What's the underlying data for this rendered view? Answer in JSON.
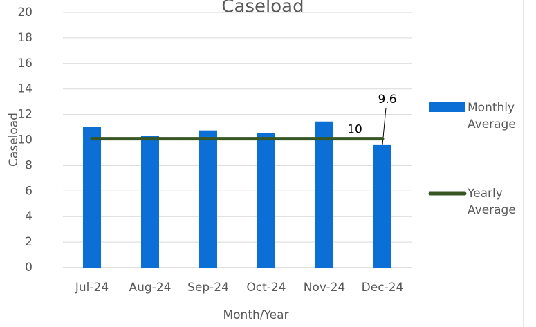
{
  "chart_data": {
    "type": "bar",
    "title": "Caseload",
    "xlabel": "Month/Year",
    "ylabel": "Caseload",
    "categories": [
      "Jul-24",
      "Aug-24",
      "Sep-24",
      "Oct-24",
      "Nov-24",
      "Dec-24"
    ],
    "series": [
      {
        "name": "Monthly Average",
        "type": "bar",
        "color": "#0b6fd6",
        "values": [
          11.05,
          10.3,
          10.75,
          10.55,
          11.45,
          9.6
        ],
        "value_labels": [
          null,
          null,
          null,
          null,
          null,
          "9.6"
        ]
      },
      {
        "name": "Yearly Average",
        "type": "line",
        "color": "#375623",
        "values": [
          10.1,
          10.1,
          10.1,
          10.1,
          10.1,
          10.1
        ],
        "value_labels": [
          null,
          null,
          null,
          null,
          null,
          "10"
        ]
      }
    ],
    "ylim": [
      0,
      20
    ],
    "yticks": [
      0,
      2,
      4,
      6,
      8,
      10,
      12,
      14,
      16,
      18,
      20
    ],
    "grid": true,
    "legend": "right"
  }
}
